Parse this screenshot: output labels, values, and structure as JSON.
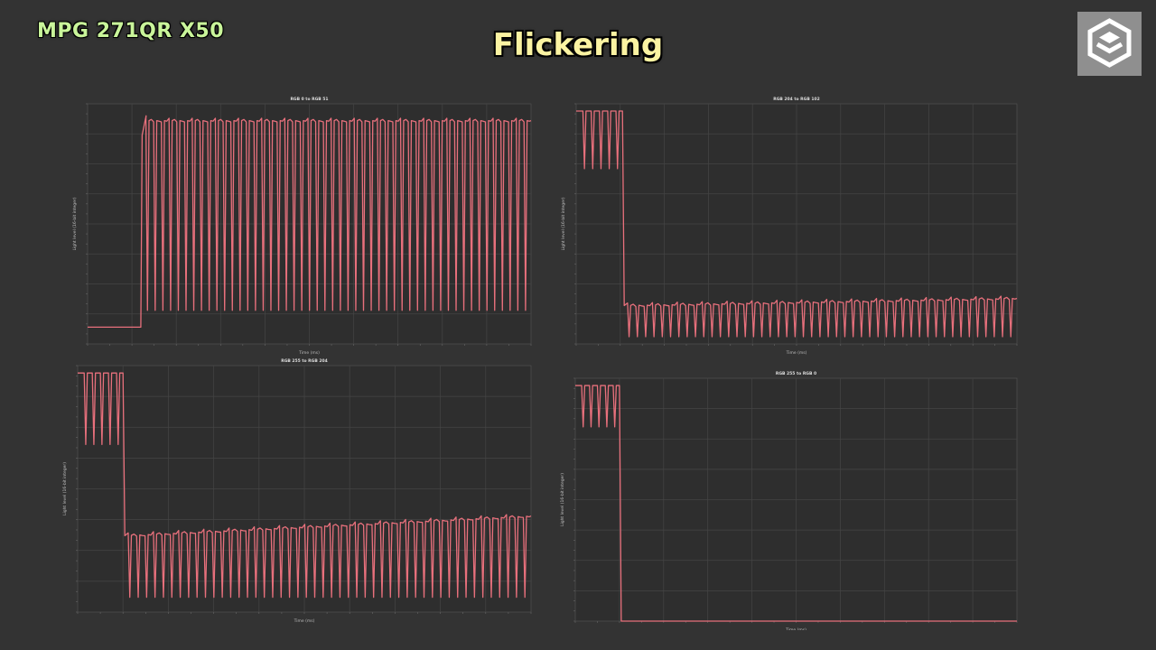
{
  "header": {
    "model": "MPG 271QR X50",
    "title": "Flickering",
    "logo_icon": "cube-logo-icon"
  },
  "colors": {
    "background": "#333333",
    "plot_background": "#2e2e2e",
    "trace": "#e8707c",
    "grid": "#454545",
    "model_text": "#c9f59a",
    "title_text": "#fbf3a2"
  },
  "chart_data": [
    {
      "type": "line",
      "title": "RGB 0 to RGB 51",
      "xlabel": "Time (ms)",
      "ylabel": "Light level (16-bit integer)",
      "grid": true,
      "x_range": [
        0,
        100
      ],
      "y_range": [
        0,
        1
      ],
      "initial_level": 0.07,
      "transition_x": 12,
      "final_level": 0.93,
      "dip_to": 0.14,
      "pulses_before": 0,
      "pulses_after": 50
    },
    {
      "type": "line",
      "title": "RGB 204 to RGB 102",
      "xlabel": "Time (ms)",
      "ylabel": "Light level (16-bit integer)",
      "grid": true,
      "x_range": [
        0,
        100
      ],
      "y_range": [
        0,
        1
      ],
      "initial_level": 0.97,
      "transition_x": 10.5,
      "final_level_start": 0.16,
      "final_level_end": 0.19,
      "dip_to": 0.03,
      "dip_before": 0.73,
      "pulses_before": 5,
      "pulses_after": 47
    },
    {
      "type": "line",
      "title": "RGB 255 to RGB 204",
      "xlabel": "Time (ms)",
      "ylabel": "Light level (16-bit integer)",
      "grid": true,
      "x_range": [
        0,
        100
      ],
      "y_range": [
        0,
        1
      ],
      "initial_level": 0.97,
      "transition_x": 10,
      "final_level_start": 0.31,
      "final_level_end": 0.39,
      "dip_to": 0.06,
      "dip_before": 0.68,
      "pulses_before": 5,
      "pulses_after": 48
    },
    {
      "type": "line",
      "title": "RGB 255 to RGB 0",
      "xlabel": "Time (ms)",
      "ylabel": "Light level (16-bit integer)",
      "grid": true,
      "x_range": [
        0,
        100
      ],
      "y_range": [
        0,
        1
      ],
      "initial_level": 0.97,
      "transition_x": 10,
      "final_level": 0.0,
      "dip_to": 0.8,
      "pulses_before": 5,
      "pulses_after": 0
    }
  ]
}
